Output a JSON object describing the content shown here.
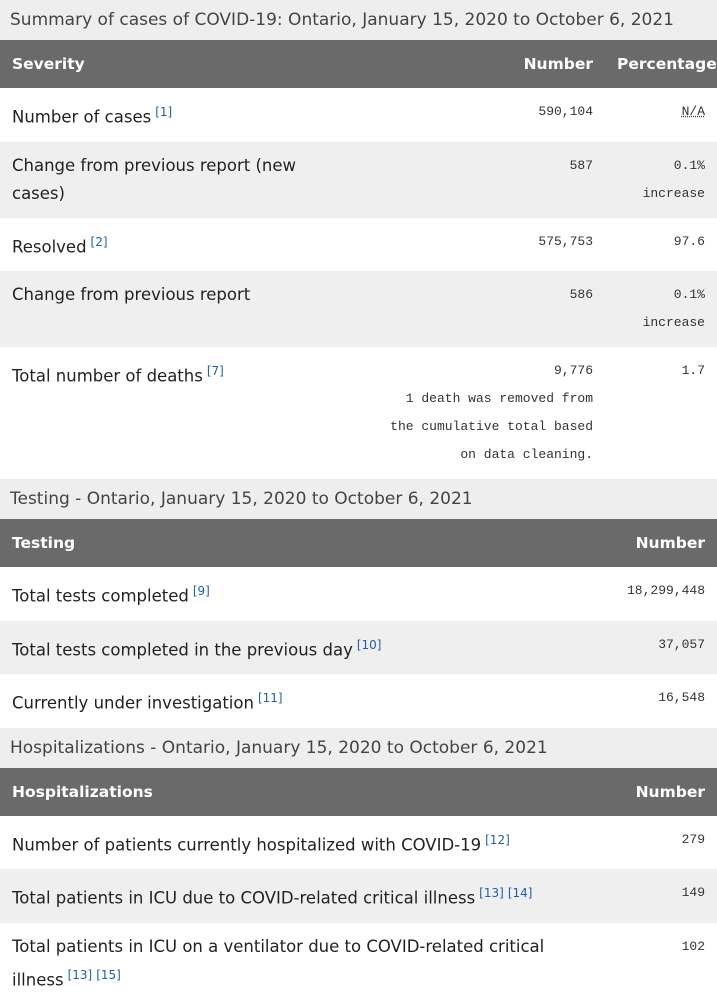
{
  "tables": [
    {
      "caption": "Summary of cases of COVID-19: Ontario, January 15, 2020 to October 6, 2021",
      "header": [
        "Severity",
        "Number",
        "Percentage"
      ],
      "rows": [
        {
          "label": "Number of cases",
          "refs": [
            "[1]"
          ],
          "number": "590,104",
          "percentage": "N/A"
        },
        {
          "label": "Change from previous report (new cases)",
          "number": "587",
          "percentage": "0.1% increase"
        },
        {
          "label": "Resolved",
          "refs": [
            "[2]"
          ],
          "number": "575,753",
          "percentage": "97.6"
        },
        {
          "label": "Change from previous report",
          "number": "586",
          "percentage": "0.1% increase"
        },
        {
          "label": "Total number of deaths",
          "refs": [
            "[7]"
          ],
          "number": "9,776",
          "note": "1 death was removed from the cumulative total based on data cleaning.",
          "percentage": "1.7"
        }
      ]
    },
    {
      "caption": "Testing - Ontario, January 15, 2020 to October 6, 2021",
      "header": [
        "Testing",
        "Number"
      ],
      "rows": [
        {
          "label": "Total tests completed",
          "refs": [
            "[9]"
          ],
          "number": "18,299,448"
        },
        {
          "label": "Total tests completed in the previous day",
          "refs": [
            "[10]"
          ],
          "number": "37,057"
        },
        {
          "label": "Currently under investigation",
          "refs": [
            "[11]"
          ],
          "number": "16,548"
        }
      ]
    },
    {
      "caption": "Hospitalizations - Ontario, January 15, 2020 to October 6, 2021",
      "header": [
        "Hospitalizations",
        "Number"
      ],
      "rows": [
        {
          "label": "Number of patients currently hospitalized with COVID-19",
          "refs": [
            "[12]"
          ],
          "number": "279"
        },
        {
          "label": "Total patients in ICU due to COVID-related critical illness",
          "refs": [
            "[13]",
            "[14]"
          ],
          "number": "149"
        },
        {
          "label": "Total patients in ICU on a ventilator due to COVID-related critical illness",
          "refs": [
            "[13]",
            "[15]"
          ],
          "number": "102"
        }
      ]
    }
  ]
}
